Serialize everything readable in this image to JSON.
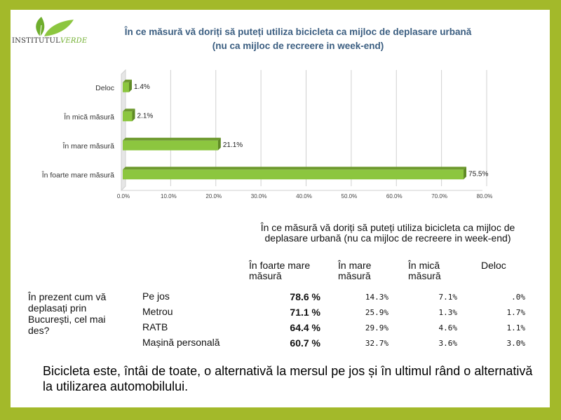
{
  "logo": {
    "part1": "INSTITUTUL",
    "part2": "VERDE"
  },
  "chart_data": {
    "type": "bar",
    "orientation": "horizontal",
    "title_line1": "În ce măsură vă doriți să puteți utiliza bicicleta ca mijloc de deplasare urbană",
    "title_line2": "(nu ca mijloc de recreere in week-end)",
    "categories": [
      "Deloc",
      "În mică măsură",
      "În mare măsură",
      "În foarte mare măsură"
    ],
    "values": [
      1.4,
      2.1,
      21.1,
      75.5
    ],
    "value_labels": [
      "1.4%",
      "2.1%",
      "21.1%",
      "75.5%"
    ],
    "xlim": [
      0,
      80
    ],
    "xticks": [
      "0.0%",
      "10.0%",
      "20.0%",
      "30.0%",
      "40.0%",
      "50.0%",
      "60.0%",
      "70.0%",
      "80.0%"
    ],
    "grid": true,
    "bar_color": "#8cc63f"
  },
  "table": {
    "heading": "În ce măsură vă doriți să puteți utiliza bicicleta ca mijloc de deplasare urbană (nu ca mijloc de recreere in week-end)",
    "columns": [
      "În foarte mare măsură",
      "În mare măsură",
      "În mică măsură",
      "Deloc"
    ],
    "row_question": "În prezent cum vă deplasați prin București, cel mai des?",
    "rows": [
      {
        "label": "Pe jos",
        "values": [
          "78.6 %",
          "14.3%",
          "7.1%",
          ".0%"
        ]
      },
      {
        "label": "Metrou",
        "values": [
          "71.1 %",
          "25.9%",
          "1.3%",
          "1.7%"
        ]
      },
      {
        "label": "RATB",
        "values": [
          "64.4 %",
          "29.9%",
          "4.6%",
          "1.1%"
        ]
      },
      {
        "label": "Mașină personală",
        "values": [
          "60.7 %",
          "32.7%",
          "3.6%",
          "3.0%"
        ]
      }
    ]
  },
  "footer": "Bicicleta este, întâi de toate, o alternativă la mersul pe jos și în ultimul rând o alternativă la utilizarea automobilului."
}
